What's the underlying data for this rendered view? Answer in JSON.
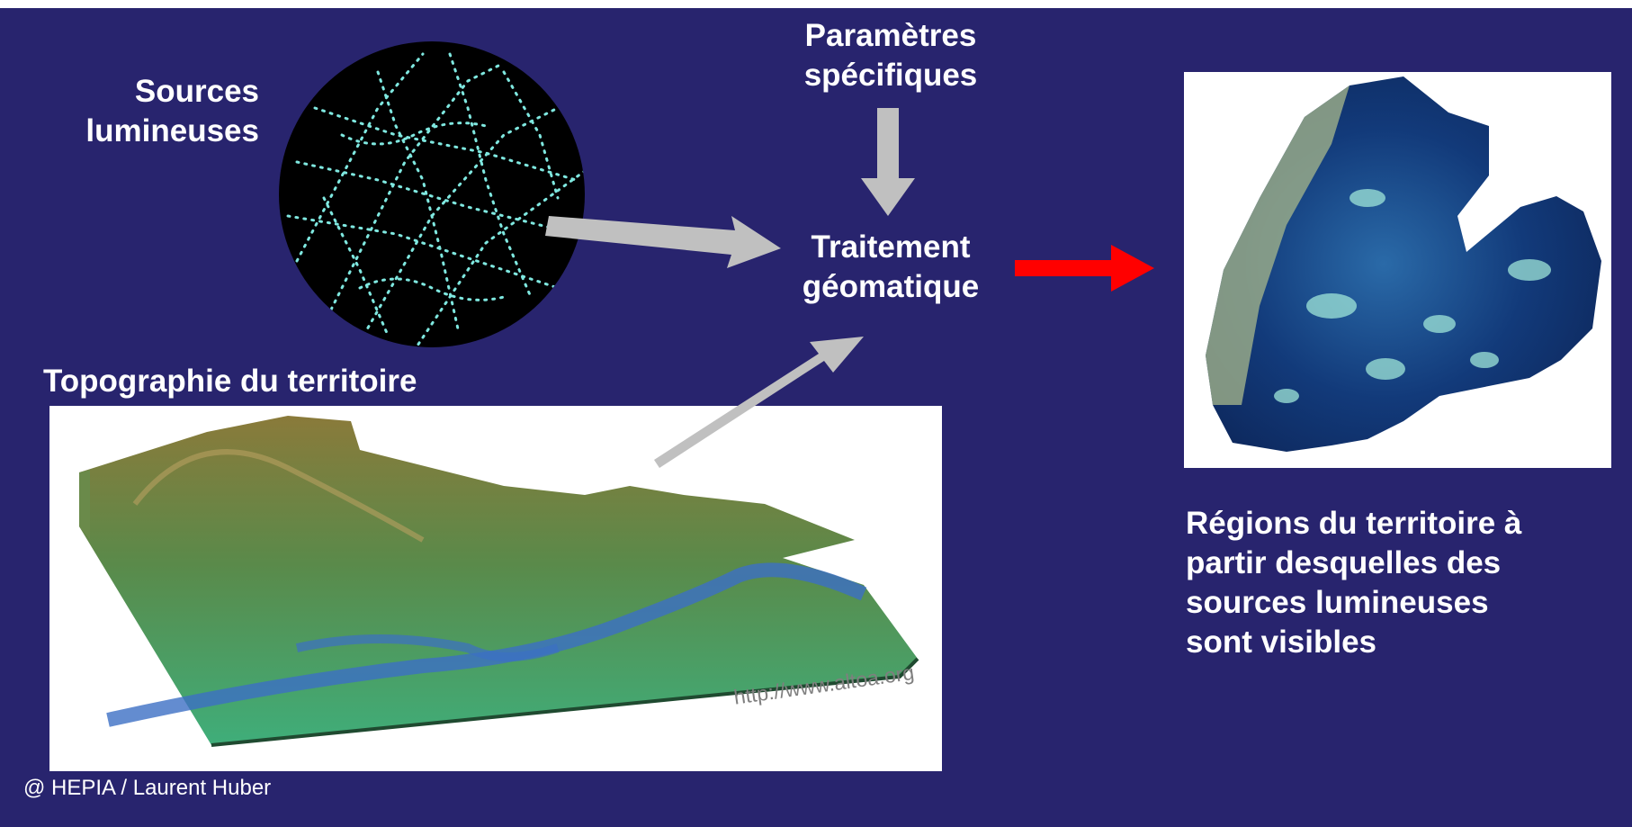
{
  "labels": {
    "sources_line1": "Sources",
    "sources_line2": "lumineuses",
    "params_line1": "Paramètres",
    "params_line2": "spécifiques",
    "treat_line1": "Traitement",
    "treat_line2": "géomatique",
    "topography": "Topographie du territoire",
    "result_lines": [
      "Régions du territoire à",
      "partir desquelles des",
      "sources lumineuses",
      "sont visibles"
    ]
  },
  "image_credit_url": "http://www.altoa.org",
  "slide_credit": "@ HEPIA / Laurent Huber",
  "colors": {
    "background": "#28246e",
    "text": "#ffffff",
    "gray_arrow": "#c0c0c0",
    "red_arrow": "#ff0000",
    "light_points": "#7fe8e0",
    "terrain_high": "#8a7a3a",
    "terrain_low": "#3fae7a",
    "water": "#3c6fc4",
    "map_dark": "#123a7a",
    "map_light": "#9fe6d8"
  },
  "icons": [
    "arrow-right-icon",
    "arrow-down-icon",
    "arrow-up-right-icon"
  ]
}
